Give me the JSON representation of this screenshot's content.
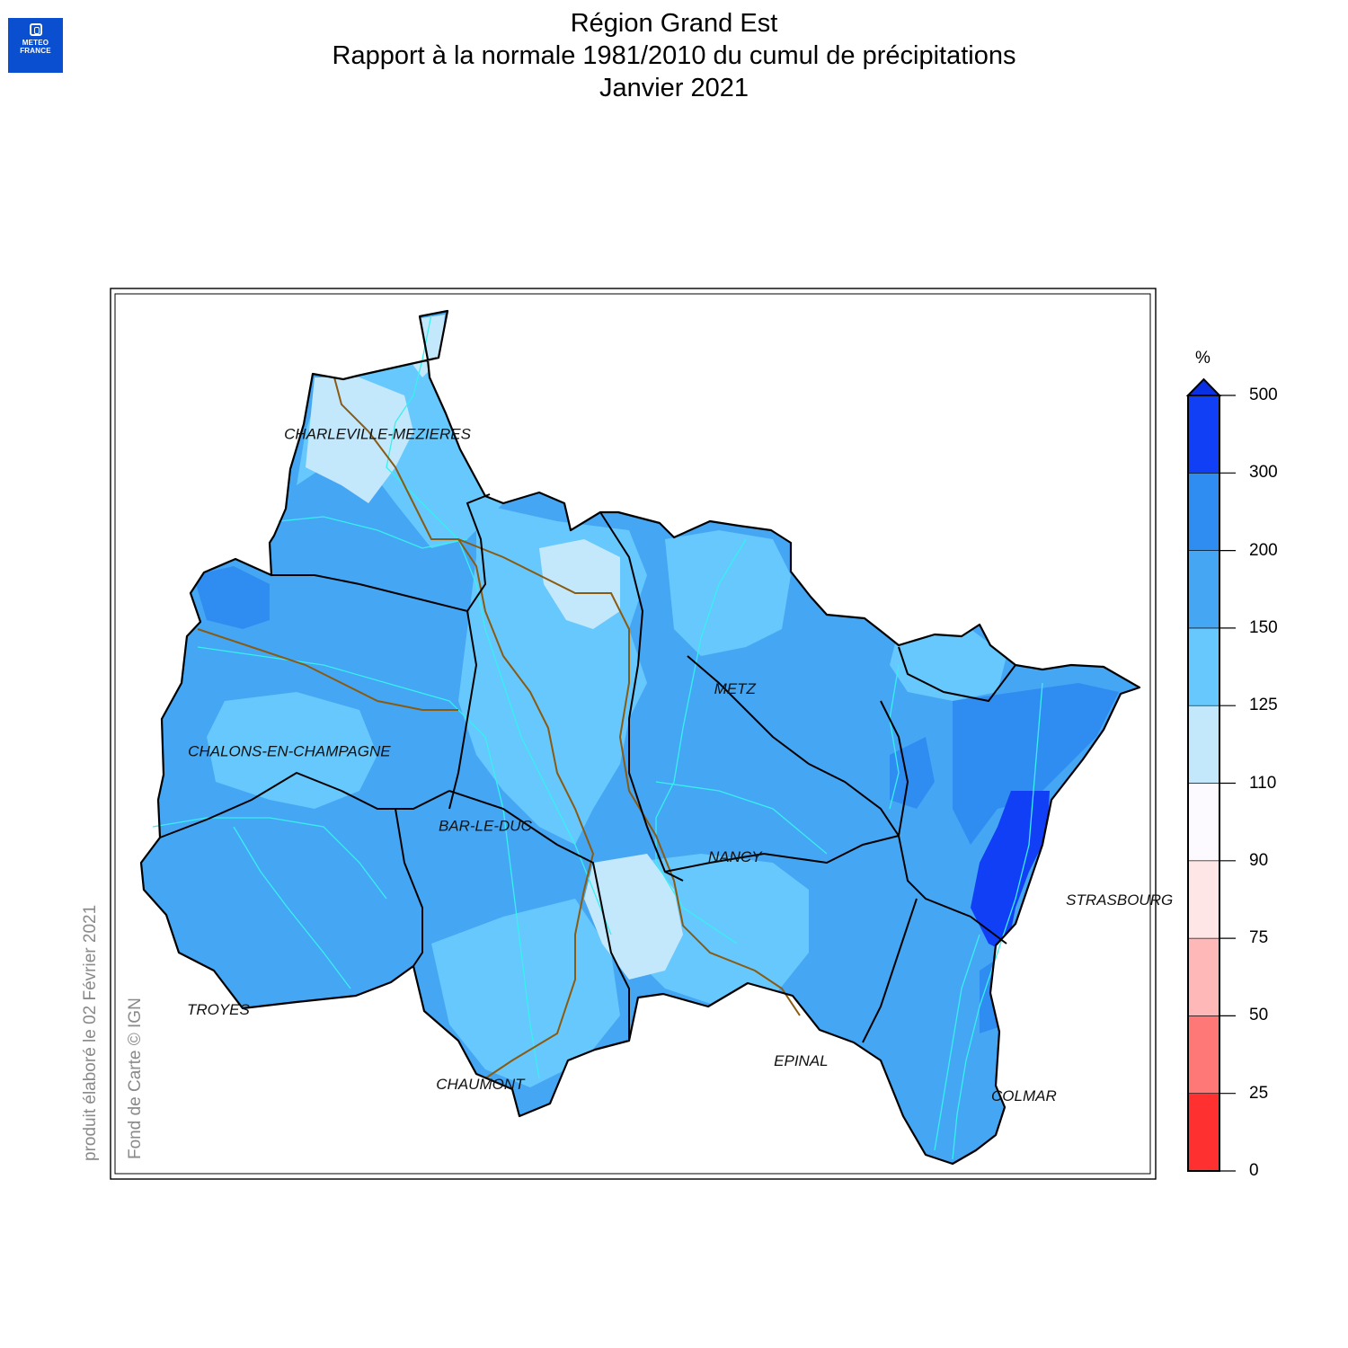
{
  "logo": {
    "line1": "METEO",
    "line2": "FRANCE",
    "name": "meteo-france-logo"
  },
  "title": {
    "line1": "Région Grand Est",
    "line2": "Rapport à la normale 1981/2010 du cumul de précipitations",
    "line3": "Janvier 2021"
  },
  "side_notes": {
    "produced": "produit élaboré le 02 Février 2021",
    "credit": "Fond de Carte © IGN"
  },
  "cities": [
    {
      "name": "CHARLEVILLE-MEZIERES",
      "lon": 4.72,
      "lat": 49.77
    },
    {
      "name": "METZ",
      "lon": 6.18,
      "lat": 49.12
    },
    {
      "name": "CHALONS-EN-CHAMPAGNE",
      "lon": 4.36,
      "lat": 48.96
    },
    {
      "name": "BAR-LE-DUC",
      "lon": 5.16,
      "lat": 48.77
    },
    {
      "name": "NANCY",
      "lon": 6.18,
      "lat": 48.69
    },
    {
      "name": "STRASBOURG",
      "lon": 7.75,
      "lat": 48.58
    },
    {
      "name": "TROYES",
      "lon": 4.07,
      "lat": 48.3
    },
    {
      "name": "CHAUMONT",
      "lon": 5.14,
      "lat": 48.11
    },
    {
      "name": "EPINAL",
      "lon": 6.45,
      "lat": 48.17
    },
    {
      "name": "COLMAR",
      "lon": 7.36,
      "lat": 48.08
    }
  ],
  "legend": {
    "unit": "%",
    "labels": [
      "0",
      "25",
      "50",
      "75",
      "90",
      "110",
      "125",
      "150",
      "200",
      "300",
      "500"
    ],
    "colors": [
      "#ff3030",
      "#ff7878",
      "#ffb8b8",
      "#ffe6e6",
      "#fcfaff",
      "#c4e8fb",
      "#66c8fc",
      "#45a6f4",
      "#2f8df2",
      "#103ff5"
    ],
    "overflow_color": "#0a30e6"
  },
  "field_colors": {
    "outside": "#ffffff",
    "base": "#45a6f4",
    "ratio_125_150": "#66c8fc",
    "ratio_110_125": "#c4e8fb",
    "ratio_200_300": "#2f8df2",
    "ratio_300_500": "#103ff5",
    "rivers": "#38f0f0",
    "regional_border": "#8a5a10",
    "department_borders": "#000000"
  }
}
